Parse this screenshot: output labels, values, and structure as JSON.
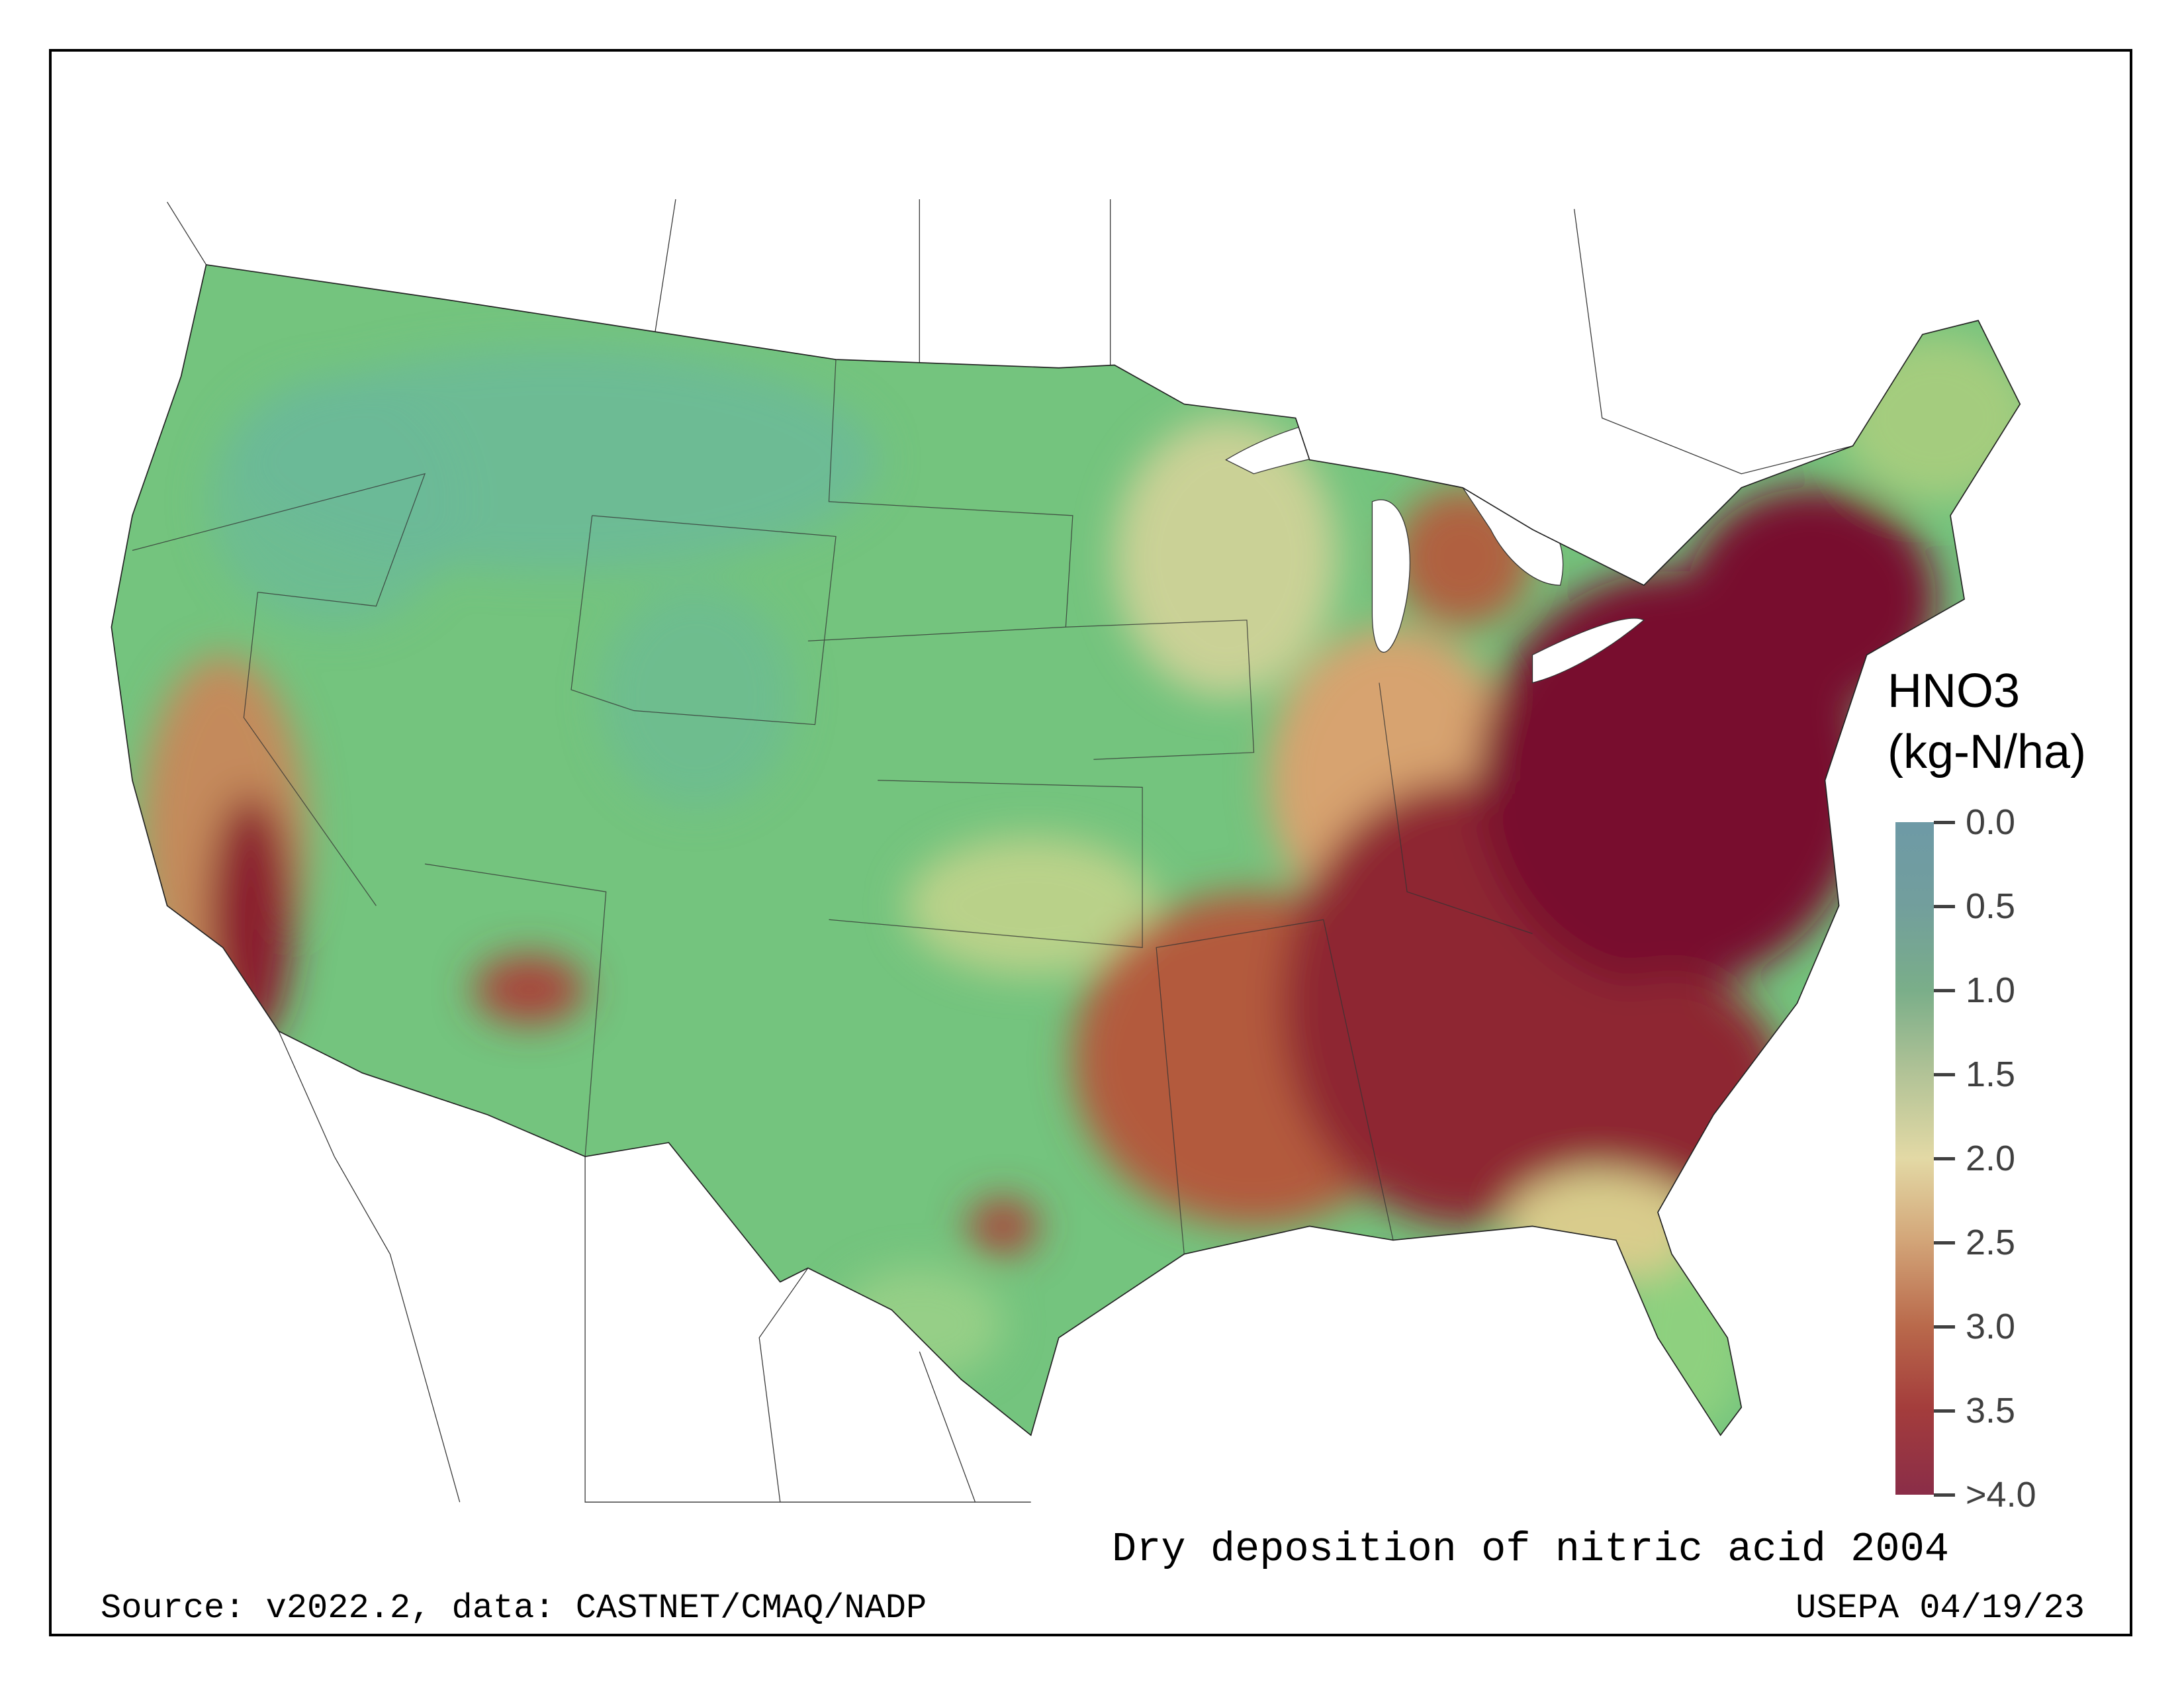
{
  "legend": {
    "title": "HNO3",
    "units": "(kg-N/ha)",
    "ticks": [
      "0.0",
      "0.5",
      "1.0",
      "1.5",
      "2.0",
      "2.5",
      "3.0",
      "3.5",
      ">4.0"
    ],
    "range": [
      0,
      4
    ],
    "colors": [
      "#6e9aa6",
      "#7aae89",
      "#e3d9a5",
      "#b9694b",
      "#8a2d48"
    ]
  },
  "title": "Dry deposition of nitric acid 2004",
  "source": "Source: v2022.2, data: CASTNET/CMAQ/NADP",
  "credit": "USEPA 04/19/23"
}
